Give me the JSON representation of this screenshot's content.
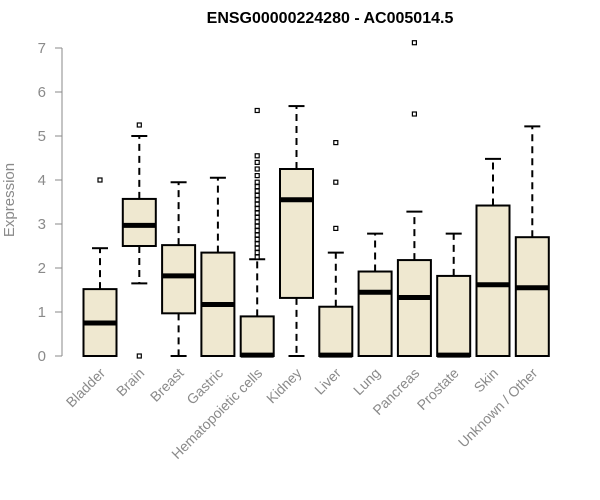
{
  "chart_data": {
    "type": "boxplot",
    "title": "ENSG00000224280 - AC005014.5",
    "xlabel": "",
    "ylabel": "Expression",
    "ylim": [
      0,
      7
    ],
    "yticks": [
      "0",
      "1",
      "2",
      "3",
      "4",
      "5",
      "6",
      "7"
    ],
    "grid": false,
    "box_fill": "#efe8d0",
    "categories": [
      "Bladder",
      "Brain",
      "Breast",
      "Gastric",
      "Hematopoietic cells",
      "Kidney",
      "Liver",
      "Lung",
      "Pancreas",
      "Prostate",
      "Skin",
      "Unknown / Other"
    ],
    "boxes": [
      {
        "min": 0,
        "q1": 0,
        "median": 0.75,
        "q3": 1.52,
        "max": 2.45,
        "outliers": [
          4.0
        ]
      },
      {
        "min": 1.65,
        "q1": 2.5,
        "median": 2.97,
        "q3": 3.57,
        "max": 5.0,
        "outliers": [
          0,
          5.25
        ]
      },
      {
        "min": 0,
        "q1": 0.97,
        "median": 1.82,
        "q3": 2.52,
        "max": 3.95,
        "outliers": []
      },
      {
        "min": 0,
        "q1": 0,
        "median": 1.17,
        "q3": 2.35,
        "max": 4.05,
        "outliers": []
      },
      {
        "min": 0,
        "q1": 0,
        "median": 0.02,
        "q3": 0.9,
        "max": 2.2,
        "outliers": [
          2.25,
          2.35,
          2.45,
          2.55,
          2.65,
          2.75,
          2.85,
          2.95,
          3.05,
          3.15,
          3.25,
          3.35,
          3.45,
          3.55,
          3.65,
          3.75,
          3.85,
          3.95,
          4.1,
          4.25,
          4.4,
          4.55,
          5.58
        ]
      },
      {
        "min": 0,
        "q1": 1.32,
        "median": 3.55,
        "q3": 4.25,
        "max": 5.68,
        "outliers": []
      },
      {
        "min": 0,
        "q1": 0,
        "median": 0.02,
        "q3": 1.12,
        "max": 2.35,
        "outliers": [
          2.9,
          3.95,
          4.85
        ]
      },
      {
        "min": 0,
        "q1": 0,
        "median": 1.45,
        "q3": 1.92,
        "max": 2.78,
        "outliers": []
      },
      {
        "min": 0,
        "q1": 0,
        "median": 1.33,
        "q3": 2.18,
        "max": 3.28,
        "outliers": [
          5.5,
          7.12
        ]
      },
      {
        "min": 0,
        "q1": 0,
        "median": 0.02,
        "q3": 1.82,
        "max": 2.78,
        "outliers": []
      },
      {
        "min": 0,
        "q1": 0,
        "median": 1.62,
        "q3": 3.42,
        "max": 4.48,
        "outliers": []
      },
      {
        "min": 0,
        "q1": 0,
        "median": 1.55,
        "q3": 2.7,
        "max": 5.22,
        "outliers": []
      }
    ]
  }
}
